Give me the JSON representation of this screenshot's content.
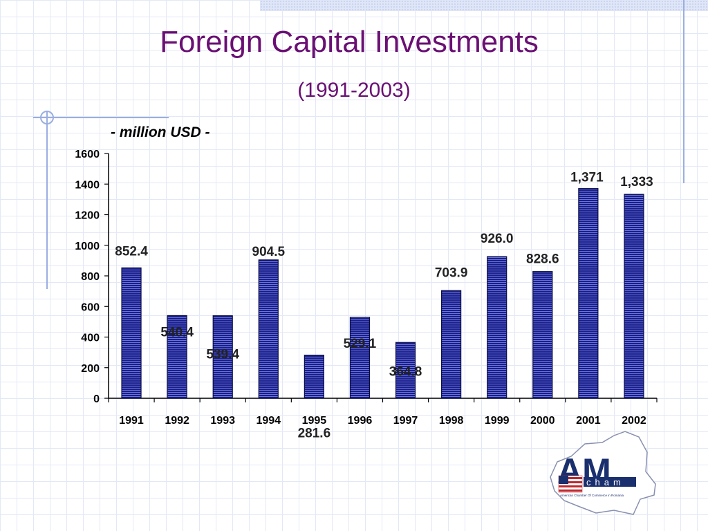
{
  "slide": {
    "title": "Foreign Capital Investments",
    "subtitle": "(1991-2003)"
  },
  "chart_data": {
    "type": "bar",
    "unit_label": "- million USD -",
    "categories": [
      "1991",
      "1992",
      "1993",
      "1994",
      "1995",
      "1996",
      "1997",
      "1998",
      "1999",
      "2000",
      "2001",
      "2002"
    ],
    "values": [
      852.4,
      540.4,
      539.4,
      904.5,
      281.6,
      529.1,
      364.8,
      703.9,
      926.0,
      828.6,
      1371,
      1333
    ],
    "data_labels": [
      "852.4",
      "540.4",
      "539.4",
      "904.5",
      "281.6",
      "529.1",
      "364.8",
      "703.9",
      "926.0",
      "828.6",
      "1,371",
      "1,333"
    ],
    "ylim": [
      0,
      1600
    ],
    "yticks": [
      0,
      200,
      400,
      600,
      800,
      1000,
      1200,
      1400,
      1600
    ],
    "grid": false,
    "bar_color": "#1a1f8a"
  },
  "logo": {
    "letters": "AM",
    "subword": "cham",
    "tagline": "American Chamber Of Commerce in Romania",
    "colors": {
      "primary": "#1a2f6e",
      "accent": "#c0282d"
    }
  }
}
